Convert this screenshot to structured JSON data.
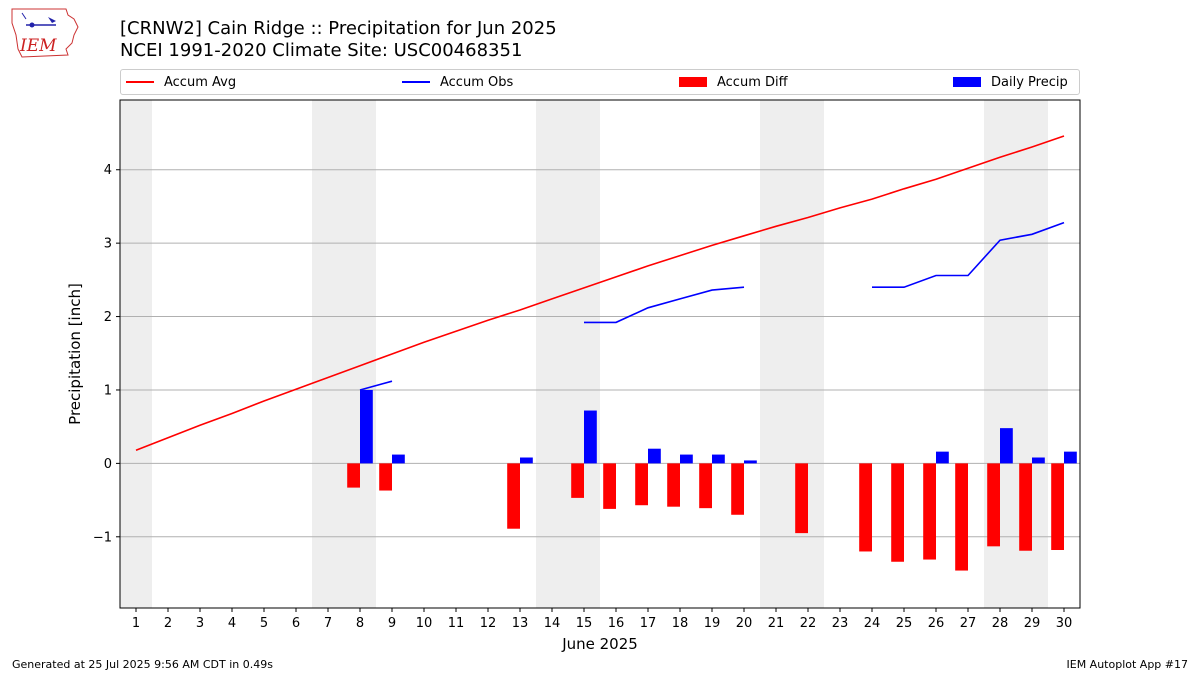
{
  "header": {
    "title_line1": "[CRNW2] Cain Ridge :: Precipitation for Jun 2025",
    "title_line2": "NCEI 1991-2020 Climate Site: USC00468351"
  },
  "logo": {
    "text": "IEM",
    "icon": "iem-iowa-logo"
  },
  "footer": {
    "generated": "Generated at 25 Jul 2025 9:56 AM CDT in 0.49s",
    "app": "IEM Autoplot App #17"
  },
  "colors": {
    "avg": "#ff0000",
    "obs": "#0000ff",
    "diff": "#ff0000",
    "daily": "#0000ff",
    "weekend": "#eeeeee",
    "grid": "#b0b0b0"
  },
  "chart_data": {
    "type": "bar",
    "xlabel": "June 2025",
    "ylabel": "Precipitation [inch]",
    "xlim": [
      0.5,
      30.5
    ],
    "ylim": [
      -1.97,
      4.95
    ],
    "yticks": [
      -1,
      0,
      1,
      2,
      3,
      4
    ],
    "ytick_labels": [
      "−1",
      "0",
      "1",
      "2",
      "3",
      "4"
    ],
    "x": [
      1,
      2,
      3,
      4,
      5,
      6,
      7,
      8,
      9,
      10,
      11,
      12,
      13,
      14,
      15,
      16,
      17,
      18,
      19,
      20,
      21,
      22,
      23,
      24,
      25,
      26,
      27,
      28,
      29,
      30
    ],
    "weekend_days": [
      1,
      7,
      8,
      14,
      15,
      21,
      22,
      28,
      29
    ],
    "grid": "y",
    "legend_position": "top",
    "series": [
      {
        "name": "Accum Avg",
        "kind": "line",
        "values": [
          0.18,
          0.35,
          0.52,
          0.68,
          0.85,
          1.01,
          1.17,
          1.33,
          1.49,
          1.65,
          1.8,
          1.95,
          2.09,
          2.24,
          2.39,
          2.54,
          2.69,
          2.83,
          2.97,
          3.1,
          3.23,
          3.35,
          3.48,
          3.6,
          3.74,
          3.87,
          4.02,
          4.17,
          4.31,
          4.46
        ]
      },
      {
        "name": "Accum Obs",
        "kind": "line",
        "values": [
          null,
          null,
          null,
          null,
          null,
          null,
          null,
          1.0,
          1.12,
          null,
          null,
          null,
          null,
          null,
          1.92,
          1.92,
          2.12,
          2.24,
          2.36,
          2.4,
          null,
          null,
          null,
          2.4,
          2.4,
          2.56,
          2.56,
          3.04,
          3.12,
          3.28
        ]
      },
      {
        "name": "Accum Diff",
        "kind": "bar",
        "values": [
          null,
          null,
          null,
          null,
          null,
          null,
          null,
          -0.33,
          -0.37,
          null,
          null,
          null,
          -0.89,
          null,
          -0.47,
          -0.62,
          -0.57,
          -0.59,
          -0.61,
          -0.7,
          null,
          -0.95,
          null,
          -1.2,
          -1.34,
          -1.31,
          -1.46,
          -1.13,
          -1.19,
          -1.18
        ]
      },
      {
        "name": "Daily Precip",
        "kind": "bar",
        "values": [
          null,
          null,
          null,
          null,
          null,
          null,
          null,
          1.0,
          0.12,
          null,
          null,
          null,
          0.08,
          null,
          0.72,
          null,
          0.2,
          0.12,
          0.12,
          0.04,
          null,
          null,
          null,
          null,
          null,
          0.16,
          null,
          0.48,
          0.08,
          0.16
        ]
      }
    ]
  }
}
